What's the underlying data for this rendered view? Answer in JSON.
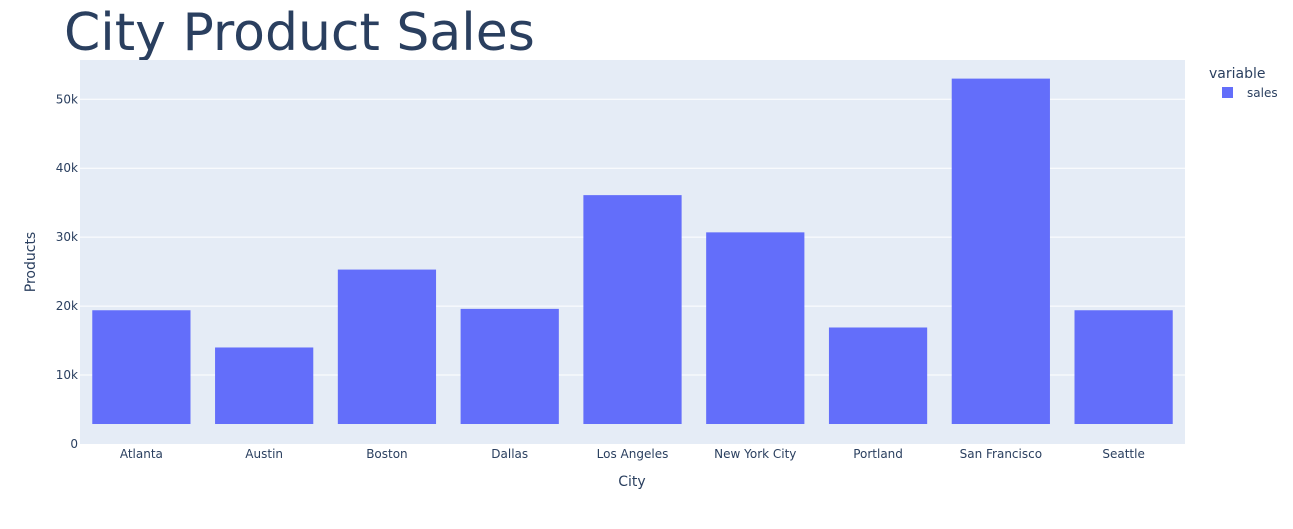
{
  "chart_data": {
    "type": "bar",
    "title": "City Product Sales",
    "xlabel": "City",
    "ylabel": "Products",
    "categories": [
      "Atlanta",
      "Austin",
      "Boston",
      "Dallas",
      "Los Angeles",
      "New York City",
      "Portland",
      "San Francisco",
      "Seattle"
    ],
    "series": [
      {
        "name": "sales",
        "base": [
          2900,
          2900,
          2900,
          2900,
          2900,
          2900,
          2900,
          2900,
          2900
        ],
        "values": [
          19400,
          14000,
          25300,
          19600,
          36100,
          30700,
          16900,
          53000,
          19400
        ],
        "color": "#636efa"
      }
    ],
    "ylim": [
      0,
      55700
    ],
    "yticks": [
      0,
      10000,
      20000,
      30000,
      40000,
      50000
    ],
    "ytick_labels": [
      "0",
      "10k",
      "20k",
      "30k",
      "40k",
      "50k"
    ],
    "grid": true,
    "legend": {
      "title": "variable",
      "position": "top-right"
    },
    "colors": {
      "plot_bg": "#e5ecf6",
      "grid": "#ffffff",
      "text": "#2a3f5f"
    }
  }
}
